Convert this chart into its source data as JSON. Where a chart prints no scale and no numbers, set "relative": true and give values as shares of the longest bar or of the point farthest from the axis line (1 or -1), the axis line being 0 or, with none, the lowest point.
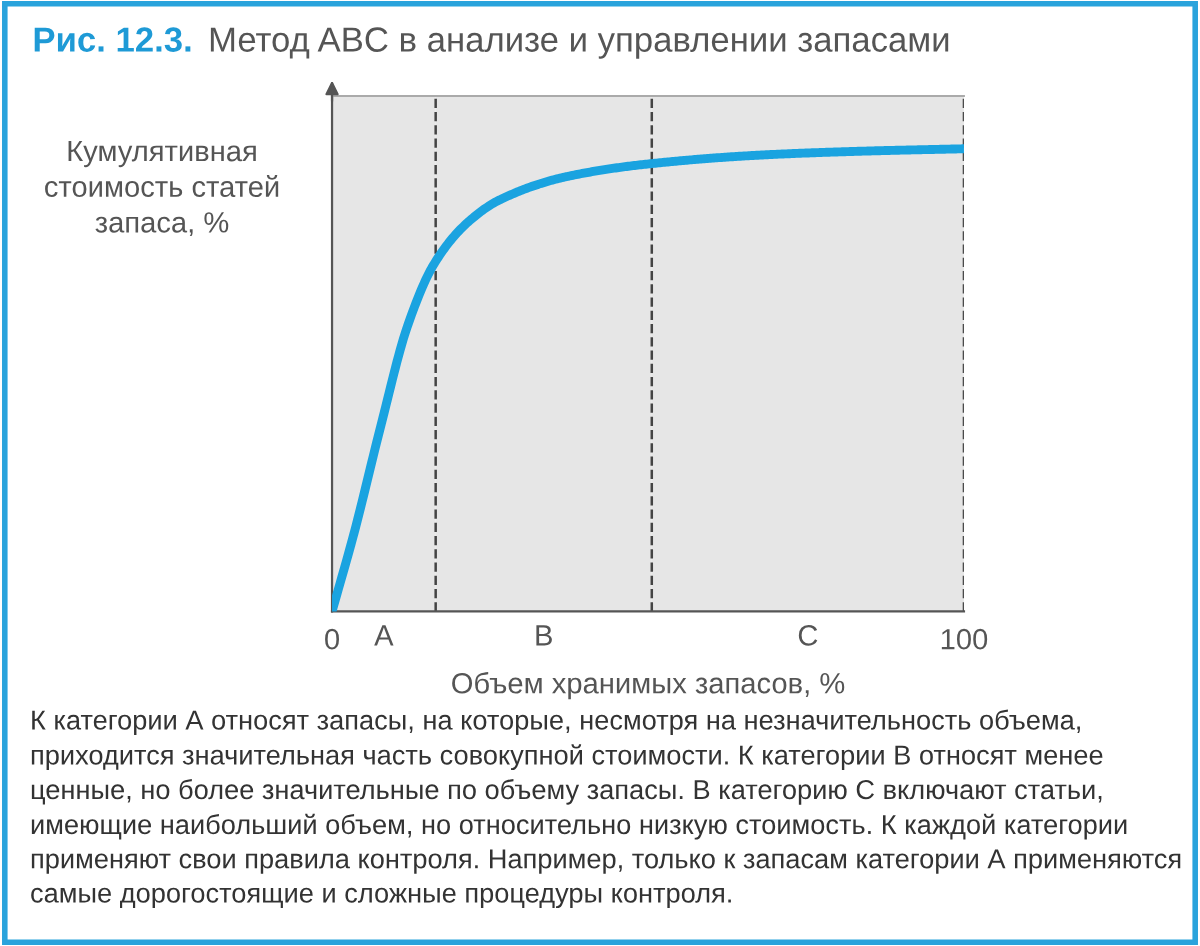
{
  "chart_data": {
    "type": "line",
    "title": "Рис. 12.3.",
    "subtitle": "Метод ABC в анализе и управлении запасами",
    "xlabel": "Объем хранимых запасов, %",
    "ylabel": "Кумулятивная\nстоимость статей\nзапаса, %",
    "relative": true,
    "x": [
      0,
      3.5,
      7.7,
      11.9,
      16.1,
      21.4,
      26.6,
      37.2,
      50.6,
      68.7,
      84.5,
      100
    ],
    "series": [
      {
        "color": "#1aa3e0",
        "values": [
          0,
          0.17,
          0.4,
          0.615,
          0.75,
          0.84,
          0.89,
          0.94,
          0.968,
          0.987,
          0.995,
          1
        ]
      }
    ],
    "xlim": [
      0,
      100
    ],
    "xticks": [
      0,
      100
    ],
    "ref_lines": [
      {
        "axis": "x",
        "value": 16.4,
        "line_style": "dashed"
      },
      {
        "axis": "x",
        "value": 50.6,
        "line_style": "dashed"
      },
      {
        "axis": "x",
        "value": 100,
        "line_style": "dashed"
      }
    ],
    "bands": [
      {
        "axis": "x",
        "from": 0,
        "to": 16.4,
        "label": "A",
        "color": "#e6e6e6"
      },
      {
        "axis": "x",
        "from": 16.4,
        "to": 50.6,
        "label": "B",
        "color": "#e6e6e6"
      },
      {
        "axis": "x",
        "from": 50.6,
        "to": 100,
        "label": "C",
        "color": "#e6e6e6"
      }
    ],
    "annotations": [
      "К категории А относят запасы, на которые, несмотря на незначительность объема, приходится значительная часть совокупной стоимости. К категории В относят менее ценные, но более значительные по объему запасы. В категорию С включают статьи, имеющие наибольший объем, но относительно низкую стоимость. К каждой категории применяют свои правила контроля. Например, только к запасам категории А применяются самые дорогостоящие и сложные процедуры контроля."
    ],
    "grid": false,
    "legend": false,
    "marker": "none",
    "line_style": "solid"
  }
}
